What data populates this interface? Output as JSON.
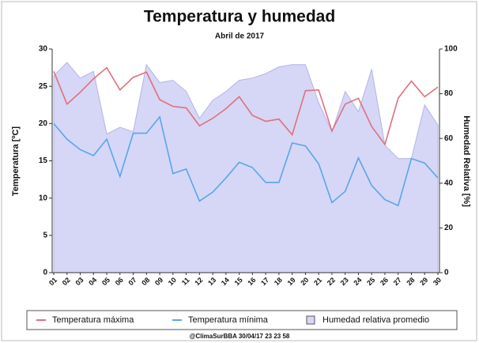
{
  "chart_data": {
    "type": "line",
    "title": "Temperatura y humedad",
    "subtitle": "Abril de 2017",
    "ylabel": "Temperatura [ºC]",
    "y2label": "Humedad Relativa [%]",
    "footer": "@ClimaSurBBA 30/04/17 23 23 58",
    "categories": [
      "01",
      "02",
      "03",
      "04",
      "05",
      "06",
      "07",
      "08",
      "09",
      "10",
      "11",
      "12",
      "13",
      "14",
      "15",
      "16",
      "17",
      "18",
      "19",
      "20",
      "21",
      "22",
      "23",
      "24",
      "25",
      "26",
      "27",
      "28",
      "29",
      "30"
    ],
    "series": [
      {
        "name": "Temperatura máxima",
        "color": "#e0707a",
        "values": [
          27.0,
          22.6,
          24.2,
          26.0,
          27.5,
          24.5,
          26.2,
          26.9,
          23.2,
          22.3,
          22.1,
          19.7,
          20.7,
          22.0,
          23.6,
          21.1,
          20.3,
          20.6,
          18.5,
          24.4,
          24.5,
          19.0,
          22.6,
          23.4,
          19.6,
          17.2,
          23.4,
          25.7,
          23.6,
          24.9
        ]
      },
      {
        "name": "Temperatura mínima",
        "color": "#5aa6e6",
        "values": [
          20.0,
          17.9,
          16.5,
          15.7,
          17.9,
          12.9,
          18.7,
          18.7,
          20.9,
          13.3,
          13.9,
          9.6,
          10.8,
          12.7,
          14.8,
          14.1,
          12.1,
          12.1,
          17.4,
          17.0,
          14.6,
          9.4,
          10.9,
          15.4,
          11.7,
          9.8,
          9.0,
          15.3,
          14.7,
          12.7
        ]
      },
      {
        "name": "Humedad relativa promedio",
        "color": "#d6d6f7",
        "axis": "y2",
        "values": [
          88,
          94,
          87,
          90,
          62,
          65,
          63,
          93,
          85,
          86,
          81,
          69,
          77,
          81,
          86,
          87,
          89,
          92,
          93,
          93,
          76,
          63,
          81,
          72,
          91,
          57,
          51,
          51,
          75,
          66
        ]
      }
    ],
    "ylim": [
      0,
      30
    ],
    "yticks": [
      0,
      5,
      10,
      15,
      20,
      25,
      30
    ],
    "y2lim": [
      0,
      100
    ],
    "y2ticks": [
      0,
      20,
      40,
      60,
      80,
      100
    ],
    "legend": "bottom"
  }
}
